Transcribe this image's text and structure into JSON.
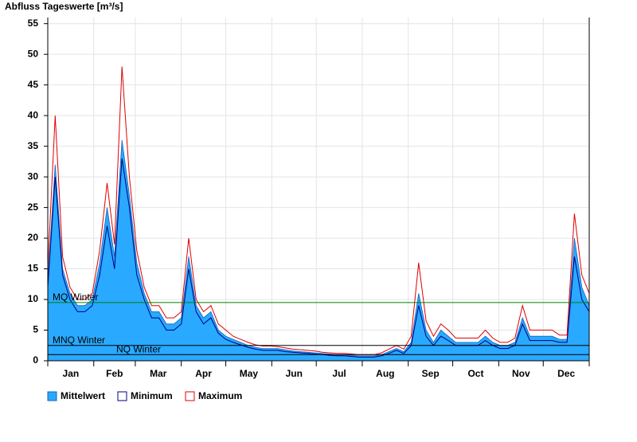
{
  "chart_data": {
    "type": "area-lines",
    "title": "Abfluss Tageswerte [m³/s]",
    "xlim": [
      0,
      365
    ],
    "ylim": [
      0,
      56
    ],
    "yticks": [
      0,
      5,
      10,
      15,
      20,
      25,
      30,
      35,
      40,
      45,
      50,
      55
    ],
    "xticks": [
      {
        "value": 15.5,
        "label": "Jan"
      },
      {
        "value": 45,
        "label": "Feb"
      },
      {
        "value": 74.5,
        "label": "Mar"
      },
      {
        "value": 105,
        "label": "Apr"
      },
      {
        "value": 135.5,
        "label": "May"
      },
      {
        "value": 166,
        "label": "Jun"
      },
      {
        "value": 196.5,
        "label": "Jul"
      },
      {
        "value": 227.5,
        "label": "Aug"
      },
      {
        "value": 258,
        "label": "Sep"
      },
      {
        "value": 288.5,
        "label": "Oct"
      },
      {
        "value": 319,
        "label": "Nov"
      },
      {
        "value": 349.5,
        "label": "Dec"
      }
    ],
    "month_starts": [
      0,
      31,
      59,
      90,
      120,
      151,
      181,
      212,
      243,
      273,
      304,
      334,
      365
    ],
    "grid": true,
    "x": [
      0,
      5,
      10,
      15,
      20,
      25,
      30,
      35,
      40,
      45,
      50,
      55,
      60,
      65,
      70,
      75,
      80,
      85,
      90,
      95,
      100,
      105,
      110,
      115,
      120,
      125,
      130,
      135,
      140,
      145,
      150,
      155,
      160,
      165,
      170,
      175,
      180,
      185,
      190,
      195,
      200,
      205,
      210,
      215,
      220,
      225,
      230,
      235,
      240,
      245,
      250,
      255,
      260,
      265,
      270,
      275,
      280,
      285,
      290,
      295,
      300,
      305,
      310,
      315,
      320,
      325,
      330,
      335,
      340,
      345,
      350,
      355,
      360,
      365
    ],
    "series": [
      {
        "name": "Mittelwert",
        "color": "#29a9ff",
        "values": [
          13,
          32,
          15,
          11,
          9,
          9,
          10,
          16,
          25,
          17,
          36,
          27,
          16,
          11,
          8,
          8,
          6,
          6,
          7,
          17,
          9,
          7,
          8,
          5,
          4,
          3.5,
          3,
          2.5,
          2.2,
          2,
          2,
          2,
          1.8,
          1.6,
          1.5,
          1.4,
          1.3,
          1.2,
          1.1,
          1,
          1,
          0.9,
          0.8,
          0.8,
          0.8,
          1,
          1.5,
          2,
          1.5,
          3,
          11,
          5,
          3,
          5,
          4,
          3,
          3,
          3,
          3,
          4,
          3,
          2.5,
          2.5,
          3,
          7,
          4,
          4,
          4,
          4,
          3.5,
          3.5,
          20,
          12,
          9
        ]
      },
      {
        "name": "Minimum",
        "color": "#000080",
        "values": [
          12,
          30,
          14,
          10,
          8,
          8,
          9,
          14,
          22,
          15,
          33,
          25,
          14,
          10,
          7,
          7,
          5,
          5,
          6,
          15,
          8,
          6,
          7,
          4.5,
          3.5,
          3,
          2.6,
          2.2,
          1.9,
          1.7,
          1.7,
          1.7,
          1.5,
          1.4,
          1.3,
          1.2,
          1.1,
          1,
          0.9,
          0.8,
          0.8,
          0.7,
          0.6,
          0.6,
          0.6,
          0.8,
          1.2,
          1.7,
          1.2,
          2.5,
          9,
          4,
          2.5,
          4,
          3.3,
          2.5,
          2.5,
          2.5,
          2.5,
          3.3,
          2.5,
          2,
          2,
          2.5,
          6,
          3.3,
          3.3,
          3.3,
          3.3,
          3,
          3,
          17,
          10,
          8
        ]
      },
      {
        "name": "Maximum",
        "color": "#e00000",
        "values": [
          15,
          40,
          17,
          12,
          10,
          10,
          11,
          18,
          29,
          19,
          48,
          30,
          18,
          12,
          9,
          9,
          7,
          7,
          8,
          20,
          10,
          8,
          9,
          6,
          5,
          4,
          3.5,
          3,
          2.6,
          2.4,
          2.4,
          2.3,
          2.1,
          1.9,
          1.8,
          1.7,
          1.6,
          1.4,
          1.3,
          1.2,
          1.2,
          1.1,
          1,
          1,
          1,
          1.3,
          1.9,
          2.5,
          1.9,
          4,
          16,
          6.5,
          4,
          6,
          5,
          3.7,
          3.7,
          3.7,
          3.7,
          5,
          3.7,
          3,
          3,
          3.7,
          9,
          5,
          5,
          5,
          5,
          4.2,
          4.2,
          24,
          14,
          11
        ]
      }
    ],
    "reference_lines": [
      {
        "label": "MQ Winter",
        "value": 9.5,
        "color": "#008000"
      },
      {
        "label": "MNQ Winter",
        "value": 2.5,
        "color": "#000000"
      },
      {
        "label": "NQ Winter",
        "value": 1,
        "color": "#000000"
      }
    ]
  }
}
